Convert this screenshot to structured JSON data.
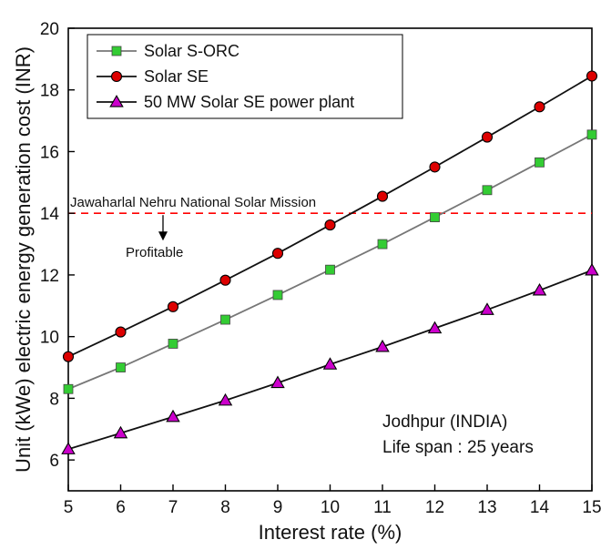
{
  "chart_data": {
    "type": "line",
    "title": "",
    "xlabel": "Interest rate (%)",
    "ylabel": "Unit (kWe) electric energy generation cost (INR)",
    "xlim": [
      5,
      15
    ],
    "ylim": [
      5,
      20
    ],
    "xticks": [
      5,
      6,
      7,
      8,
      9,
      10,
      11,
      12,
      13,
      14,
      15
    ],
    "yticks": [
      6,
      8,
      10,
      12,
      14,
      16,
      18,
      20
    ],
    "grid": false,
    "legend_position": "top-left",
    "x": [
      5,
      6,
      7,
      8,
      9,
      10,
      11,
      12,
      13,
      14,
      15
    ],
    "series": [
      {
        "name": "Solar S-ORC",
        "marker": "square",
        "marker_color": "#33cc33",
        "line_color": "#777777",
        "values": [
          8.3,
          9.0,
          9.77,
          10.55,
          11.35,
          12.17,
          13.0,
          13.87,
          14.75,
          15.65,
          16.55
        ]
      },
      {
        "name": "Solar SE",
        "marker": "circle",
        "marker_color": "#dd0000",
        "line_color": "#111111",
        "values": [
          9.35,
          10.15,
          10.97,
          11.83,
          12.7,
          13.62,
          14.55,
          15.5,
          16.47,
          17.45,
          18.45
        ]
      },
      {
        "name": "50 MW Solar SE power plant",
        "marker": "triangle",
        "marker_color": "#cc00cc",
        "line_color": "#111111",
        "values": [
          6.35,
          6.87,
          7.4,
          7.93,
          8.5,
          9.1,
          9.67,
          10.27,
          10.87,
          11.5,
          12.15
        ]
      }
    ],
    "reference_line": {
      "y": 14,
      "color": "#ff0000",
      "label": "Jawaharlal Nehru National Solar Mission",
      "arrow_label": "Profitable"
    },
    "annotations": [
      "Jodhpur (INDIA)",
      "Life span : 25 years"
    ]
  }
}
